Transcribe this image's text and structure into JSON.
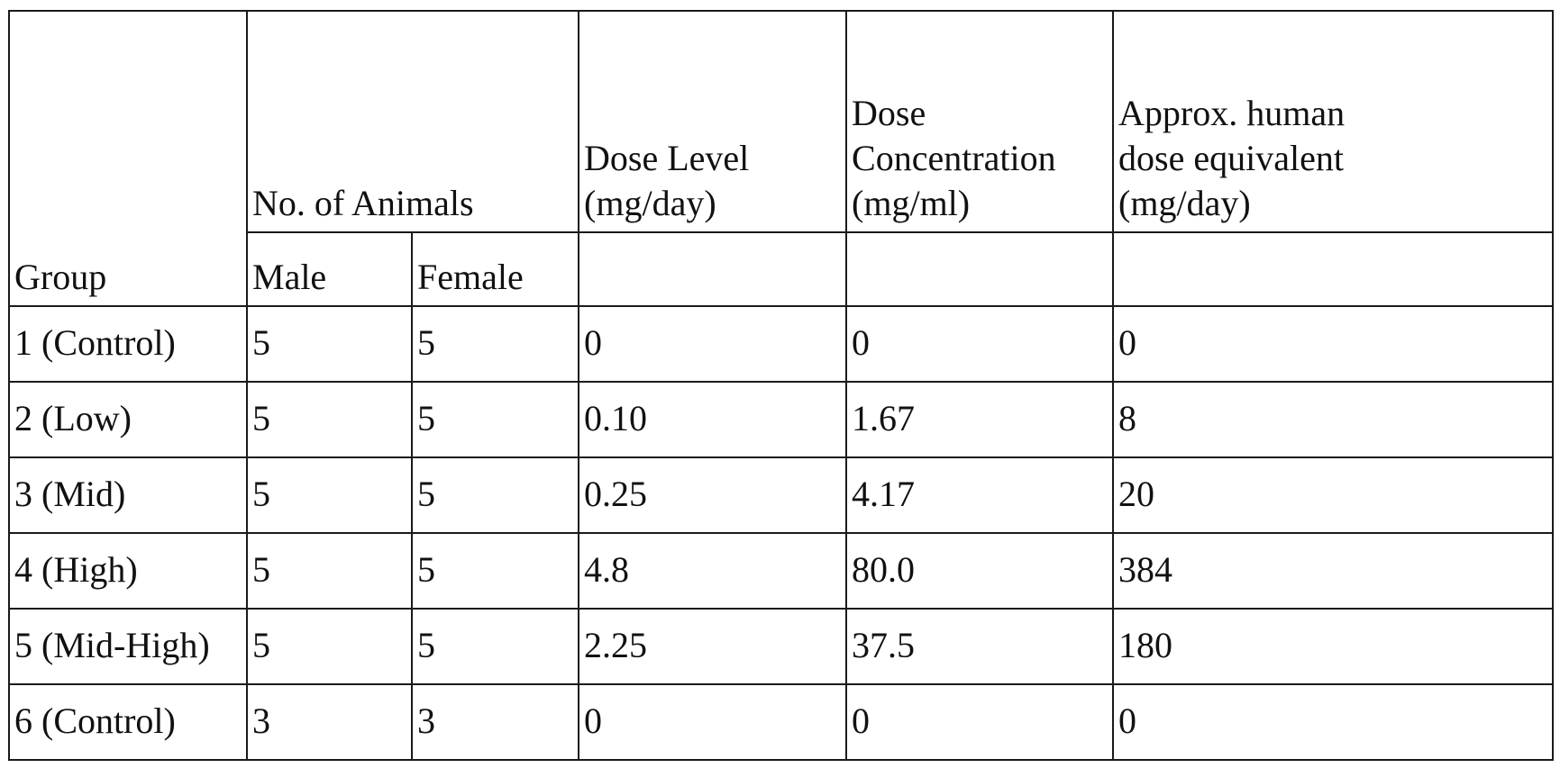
{
  "table": {
    "header": {
      "group": "Group",
      "animals": "No. of Animals",
      "male": "Male",
      "female": "Female",
      "dose_level": "Dose Level\n(mg/day)",
      "dose_concentration": "Dose\nConcentration\n(mg/ml)",
      "human_dose": "Approx. human\ndose equivalent\n(mg/day)"
    },
    "rows": [
      {
        "group": "1 (Control)",
        "male": "5",
        "female": "5",
        "dose_level": "0",
        "dose_concentration": "0",
        "human_dose": "0"
      },
      {
        "group": "2 (Low)",
        "male": "5",
        "female": "5",
        "dose_level": "0.10",
        "dose_concentration": "1.67",
        "human_dose": "8"
      },
      {
        "group": "3 (Mid)",
        "male": "5",
        "female": "5",
        "dose_level": "0.25",
        "dose_concentration": "4.17",
        "human_dose": "20"
      },
      {
        "group": "4 (High)",
        "male": "5",
        "female": "5",
        "dose_level": "4.8",
        "dose_concentration": "80.0",
        "human_dose": "384"
      },
      {
        "group": "5 (Mid-High)",
        "male": "5",
        "female": "5",
        "dose_level": "2.25",
        "dose_concentration": "37.5",
        "human_dose": "180"
      },
      {
        "group": "6 (Control)",
        "male": "3",
        "female": "3",
        "dose_level": "0",
        "dose_concentration": "0",
        "human_dose": "0"
      }
    ]
  }
}
